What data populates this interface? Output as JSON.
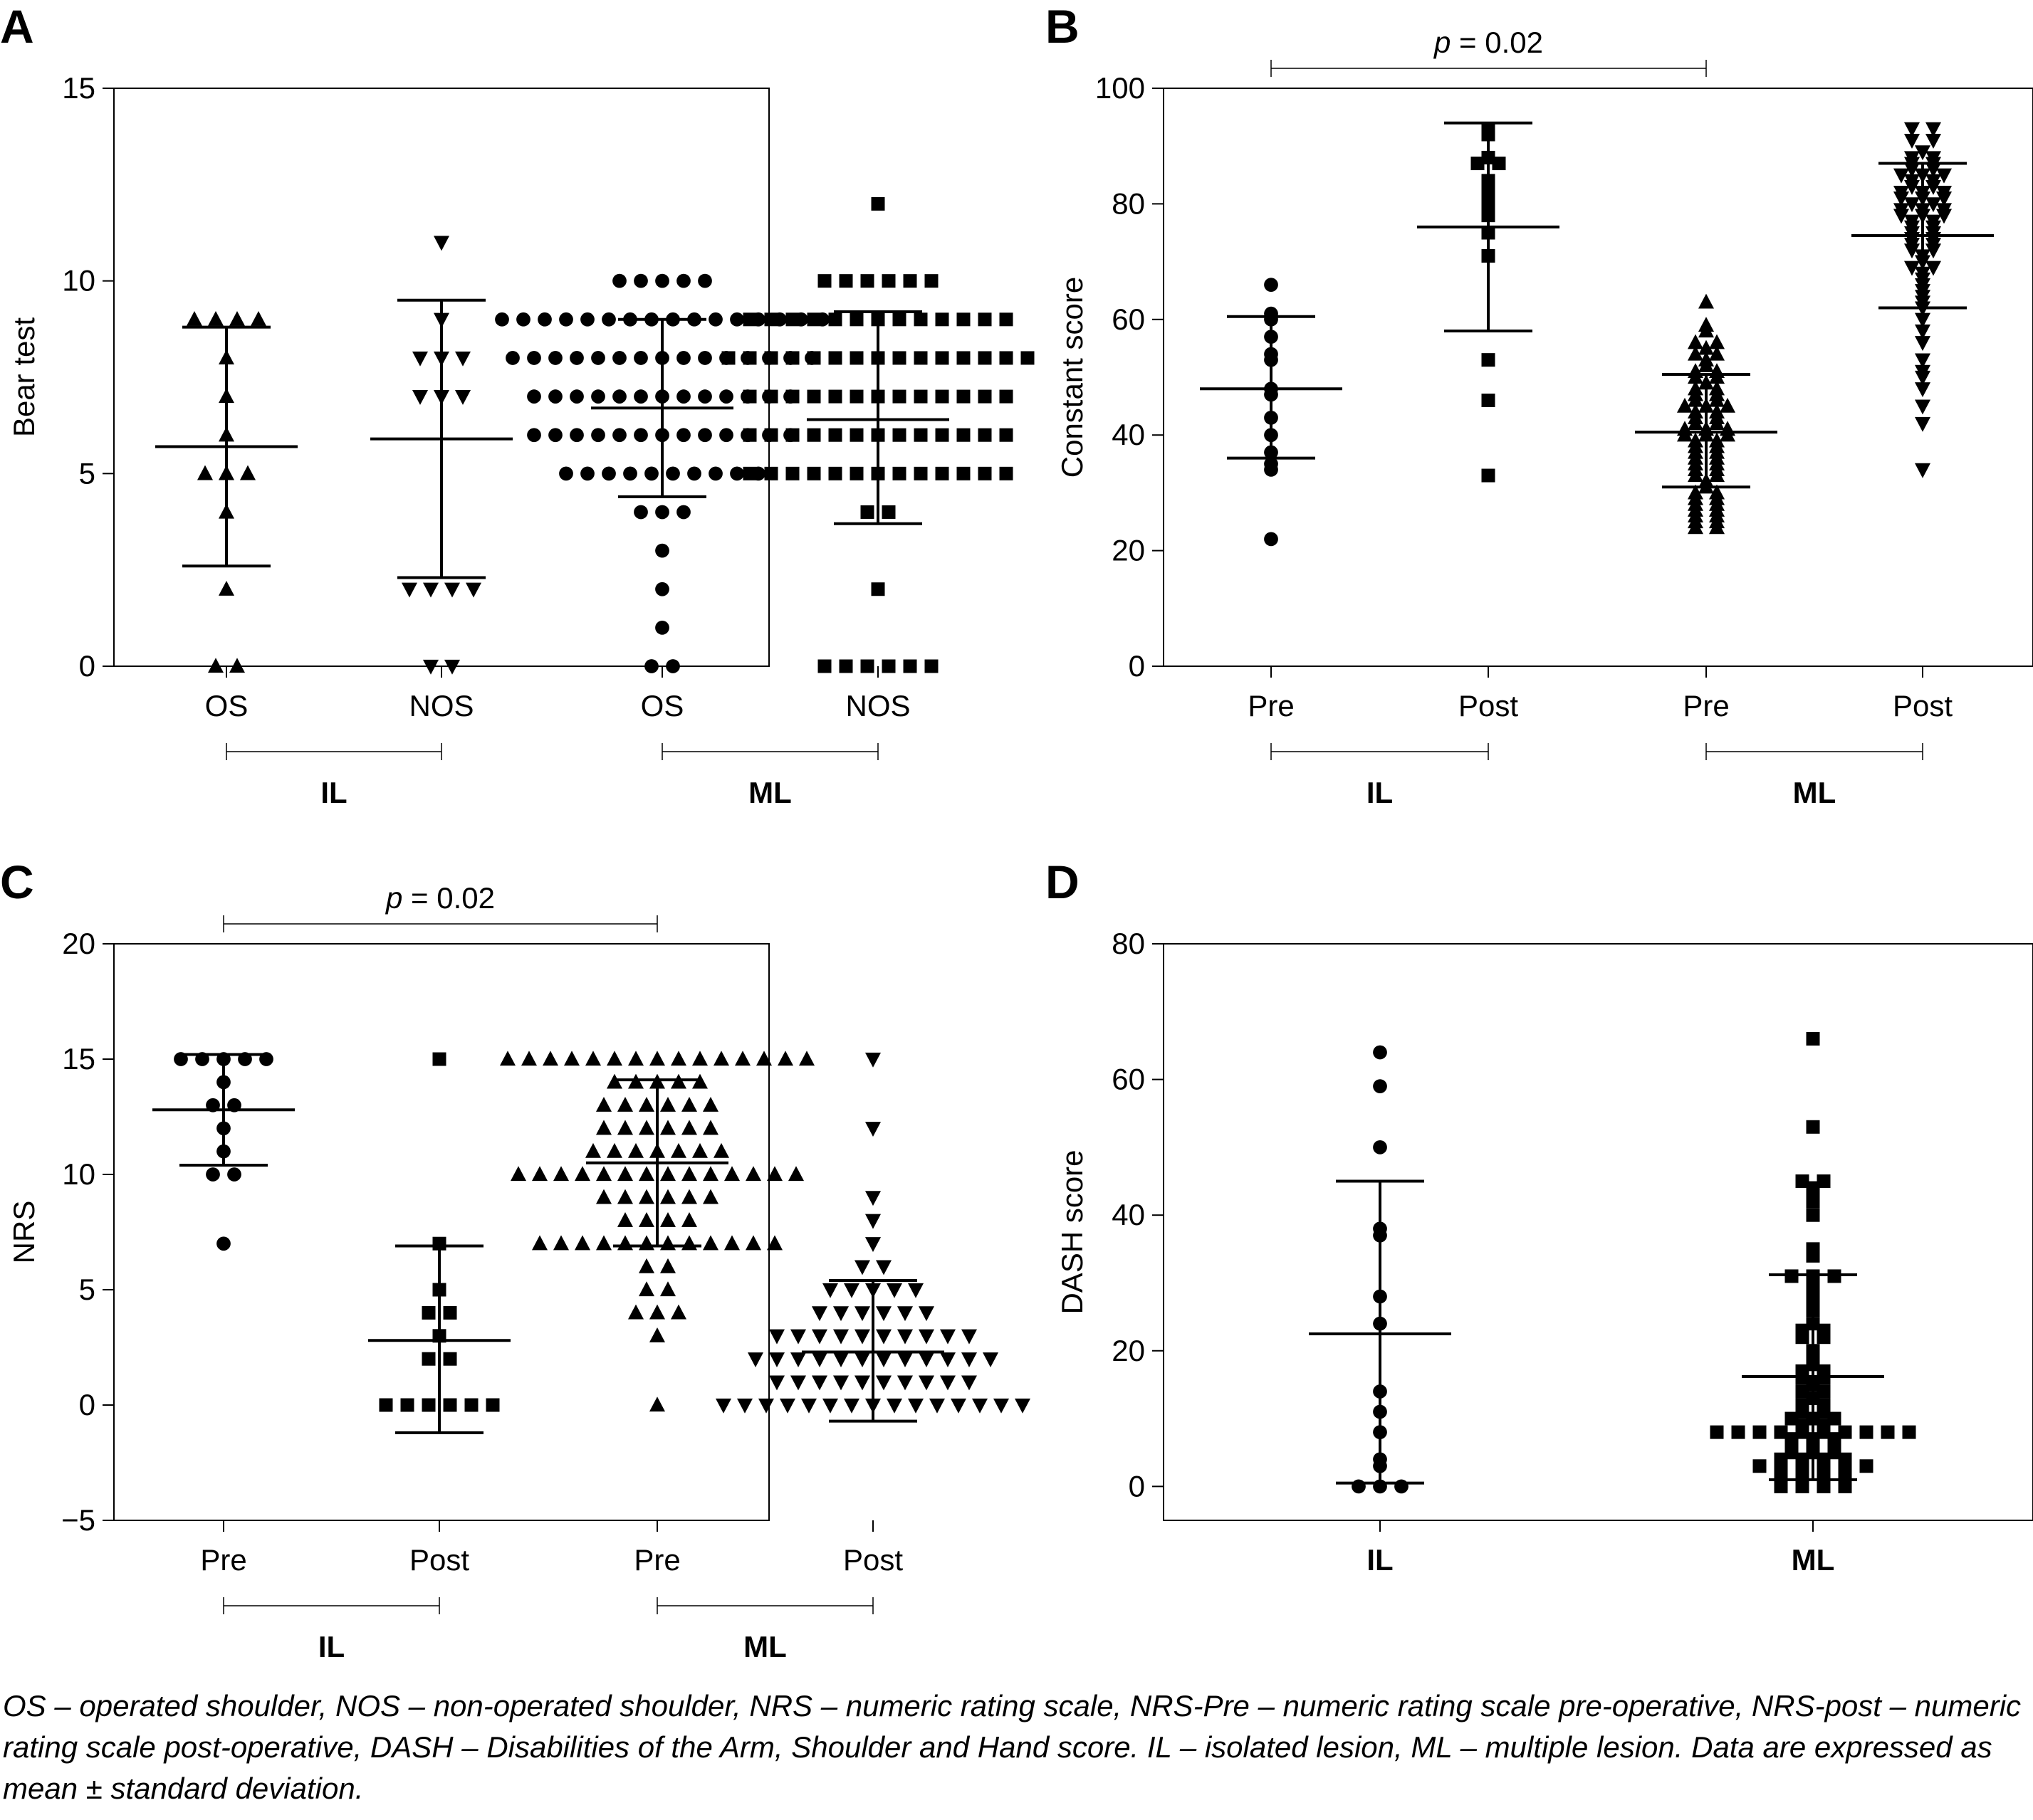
{
  "caption": "OS – operated shoulder, NOS – non-operated shoulder, NRS – numeric rating scale, NRS-Pre – numeric rating scale pre-operative, NRS-post – numeric rating scale post-operative, DASH – Disabilities of the Arm, Shoulder and Hand score. IL – isolated lesion, ML – multiple lesion. Data are expressed as mean ± standard deviation.",
  "chart_data": [
    {
      "panel": "A",
      "type": "scatter",
      "ylabel": "Bear test",
      "ylim": [
        0,
        15
      ],
      "yticks": [
        0,
        5,
        10,
        15
      ],
      "categories": [
        "OS",
        "NOS",
        "OS",
        "NOS"
      ],
      "groups": [
        {
          "label": "IL",
          "span": [
            0,
            1
          ]
        },
        {
          "label": "ML",
          "span": [
            2,
            3
          ]
        }
      ],
      "significance": null,
      "series": [
        {
          "marker": "triangle-up",
          "mean": 5.7,
          "sd_low": 2.6,
          "sd_high": 8.8,
          "values": [
            9,
            9,
            9,
            9,
            8,
            7,
            6,
            5,
            5,
            5,
            4,
            2,
            0,
            0
          ]
        },
        {
          "marker": "triangle-down",
          "mean": 5.9,
          "sd_low": 2.3,
          "sd_high": 9.5,
          "values": [
            11,
            9,
            8,
            8,
            8,
            7,
            7,
            7,
            2,
            2,
            2,
            2,
            0,
            0
          ]
        },
        {
          "marker": "circle",
          "mean": 6.7,
          "sd_low": 4.4,
          "sd_high": 9.0,
          "values": [
            10,
            10,
            10,
            10,
            10,
            9,
            9,
            9,
            9,
            9,
            9,
            9,
            9,
            9,
            9,
            9,
            9,
            9,
            9,
            9,
            9,
            8,
            8,
            8,
            8,
            8,
            8,
            8,
            8,
            8,
            8,
            8,
            8,
            8,
            8,
            8,
            7,
            7,
            7,
            7,
            7,
            7,
            7,
            7,
            7,
            7,
            7,
            7,
            7,
            6,
            6,
            6,
            6,
            6,
            6,
            6,
            6,
            6,
            6,
            6,
            6,
            6,
            5,
            5,
            5,
            5,
            5,
            5,
            5,
            5,
            5,
            5,
            4,
            4,
            4,
            3,
            2,
            1,
            0,
            0
          ]
        },
        {
          "marker": "square",
          "mean": 6.4,
          "sd_low": 3.7,
          "sd_high": 9.2,
          "values": [
            12,
            10,
            10,
            10,
            10,
            10,
            10,
            9,
            9,
            9,
            9,
            9,
            9,
            9,
            9,
            9,
            9,
            9,
            9,
            9,
            8,
            8,
            8,
            8,
            8,
            8,
            8,
            8,
            8,
            8,
            8,
            8,
            8,
            8,
            8,
            7,
            7,
            7,
            7,
            7,
            7,
            7,
            7,
            7,
            7,
            7,
            7,
            7,
            6,
            6,
            6,
            6,
            6,
            6,
            6,
            6,
            6,
            6,
            6,
            6,
            6,
            5,
            5,
            5,
            5,
            5,
            5,
            5,
            5,
            5,
            5,
            5,
            5,
            5,
            4,
            4,
            2,
            0,
            0,
            0,
            0,
            0,
            0
          ]
        }
      ]
    },
    {
      "panel": "B",
      "type": "scatter",
      "ylabel": "Constant score",
      "ylim": [
        0,
        100
      ],
      "yticks": [
        0,
        20,
        40,
        60,
        80,
        100
      ],
      "categories": [
        "Pre",
        "Post",
        "Pre",
        "Post"
      ],
      "groups": [
        {
          "label": "IL",
          "span": [
            0,
            1
          ]
        },
        {
          "label": "ML",
          "span": [
            2,
            3
          ]
        }
      ],
      "significance": {
        "from": 0,
        "to": 2,
        "p_prefix": "p",
        "p_rest": " = 0.02"
      },
      "series": [
        {
          "marker": "circle",
          "mean": 48,
          "sd_low": 36,
          "sd_high": 60.5,
          "values": [
            66,
            61,
            60,
            57,
            54,
            53,
            48,
            47,
            43,
            40,
            37,
            35,
            34,
            22
          ]
        },
        {
          "marker": "square",
          "mean": 76,
          "sd_low": 58,
          "sd_high": 94,
          "values": [
            93,
            92,
            88,
            87,
            87,
            84,
            82,
            80,
            78,
            75,
            71,
            53,
            46,
            33
          ]
        },
        {
          "marker": "triangle-up",
          "mean": 40.5,
          "sd_low": 31,
          "sd_high": 50.5,
          "values": [
            63,
            59,
            58,
            56,
            56,
            55,
            54,
            54,
            53,
            52,
            51,
            51,
            50,
            50,
            49,
            48,
            48,
            47,
            47,
            46,
            46,
            45,
            45,
            45,
            44,
            44,
            43,
            43,
            42,
            42,
            41,
            41,
            41,
            40,
            40,
            40,
            39,
            39,
            38,
            38,
            37,
            37,
            36,
            36,
            35,
            35,
            34,
            34,
            33,
            33,
            32,
            31,
            30,
            30,
            29,
            29,
            28,
            28,
            27,
            27,
            26,
            26,
            25,
            25,
            24,
            24
          ]
        },
        {
          "marker": "triangle-down",
          "mean": 74.5,
          "sd_low": 62,
          "sd_high": 87,
          "values": [
            93,
            93,
            91,
            91,
            89,
            88,
            88,
            87,
            87,
            86,
            86,
            85,
            85,
            85,
            84,
            84,
            83,
            83,
            82,
            82,
            82,
            81,
            81,
            81,
            80,
            80,
            79,
            79,
            79,
            78,
            78,
            78,
            77,
            77,
            76,
            76,
            75,
            75,
            74,
            74,
            73,
            73,
            72,
            72,
            71,
            70,
            69,
            69,
            68,
            67,
            66,
            65,
            64,
            63,
            62,
            60,
            58,
            56,
            53,
            51,
            50,
            48,
            45,
            42,
            34
          ]
        }
      ]
    },
    {
      "panel": "C",
      "type": "scatter",
      "ylabel": "NRS",
      "ylim": [
        -5,
        20
      ],
      "yticks": [
        -5,
        0,
        5,
        10,
        15,
        20
      ],
      "categories": [
        "Pre",
        "Post",
        "Pre",
        "Post"
      ],
      "groups": [
        {
          "label": "IL",
          "span": [
            0,
            1
          ]
        },
        {
          "label": "ML",
          "span": [
            2,
            3
          ]
        }
      ],
      "significance": {
        "from": 0,
        "to": 2,
        "p_prefix": "p",
        "p_rest": " = 0.02"
      },
      "series": [
        {
          "marker": "circle",
          "mean": 12.8,
          "sd_low": 10.4,
          "sd_high": 15.2,
          "values": [
            15,
            15,
            15,
            15,
            15,
            14,
            13,
            13,
            12,
            11,
            10,
            10,
            7
          ]
        },
        {
          "marker": "square",
          "mean": 2.8,
          "sd_low": -1.2,
          "sd_high": 6.9,
          "values": [
            15,
            7,
            5,
            4,
            4,
            3,
            2,
            2,
            0,
            0,
            0,
            0,
            0,
            0
          ]
        },
        {
          "marker": "triangle-up",
          "mean": 10.5,
          "sd_low": 6.9,
          "sd_high": 14.1,
          "values": [
            15,
            15,
            15,
            15,
            15,
            15,
            15,
            15,
            15,
            15,
            15,
            15,
            15,
            15,
            15,
            14,
            14,
            14,
            14,
            14,
            13,
            13,
            13,
            13,
            13,
            13,
            12,
            12,
            12,
            12,
            12,
            12,
            11,
            11,
            11,
            11,
            11,
            11,
            11,
            10,
            10,
            10,
            10,
            10,
            10,
            10,
            10,
            10,
            10,
            10,
            10,
            10,
            10,
            9,
            9,
            9,
            9,
            9,
            9,
            8,
            8,
            8,
            8,
            7,
            7,
            7,
            7,
            7,
            7,
            7,
            7,
            7,
            7,
            7,
            7,
            6,
            6,
            5,
            5,
            4,
            4,
            4,
            3,
            0
          ]
        },
        {
          "marker": "triangle-down",
          "mean": 2.3,
          "sd_low": -0.7,
          "sd_high": 5.4,
          "values": [
            15,
            12,
            9,
            8,
            7,
            6,
            6,
            5,
            5,
            5,
            5,
            5,
            4,
            4,
            4,
            4,
            4,
            4,
            3,
            3,
            3,
            3,
            3,
            3,
            3,
            3,
            3,
            3,
            2,
            2,
            2,
            2,
            2,
            2,
            2,
            2,
            2,
            2,
            2,
            2,
            1,
            1,
            1,
            1,
            1,
            1,
            1,
            1,
            1,
            1,
            0,
            0,
            0,
            0,
            0,
            0,
            0,
            0,
            0,
            0,
            0,
            0,
            0,
            0,
            0
          ]
        }
      ]
    },
    {
      "panel": "D",
      "type": "scatter",
      "ylabel": "DASH score",
      "ylim": [
        -5,
        80
      ],
      "yticks": [
        0,
        20,
        40,
        60,
        80
      ],
      "categories": [
        "IL",
        "ML"
      ],
      "category_bold": true,
      "groups": [],
      "significance": null,
      "series": [
        {
          "marker": "circle",
          "mean": 22.5,
          "sd_low": 0.5,
          "sd_high": 45,
          "values": [
            64,
            59,
            50,
            38,
            37,
            28,
            24,
            14,
            11,
            8,
            4,
            3,
            0,
            0,
            0
          ]
        },
        {
          "marker": "square",
          "mean": 16.2,
          "sd_low": 1,
          "sd_high": 31.2,
          "values": [
            66,
            53,
            45,
            45,
            44,
            43,
            42,
            40,
            35,
            34,
            31,
            31,
            31,
            30,
            29,
            28,
            27,
            26,
            24,
            23,
            23,
            22,
            22,
            20,
            19,
            18,
            17,
            17,
            16,
            16,
            15,
            14,
            14,
            13,
            12,
            12,
            11,
            11,
            10,
            10,
            10,
            9,
            9,
            8,
            8,
            8,
            8,
            8,
            8,
            8,
            8,
            8,
            8,
            7,
            7,
            7,
            6,
            6,
            6,
            5,
            5,
            5,
            4,
            4,
            4,
            4,
            3,
            3,
            3,
            3,
            3,
            3,
            2,
            2,
            2,
            2,
            1,
            1,
            0,
            0,
            0,
            0
          ]
        }
      ]
    }
  ]
}
